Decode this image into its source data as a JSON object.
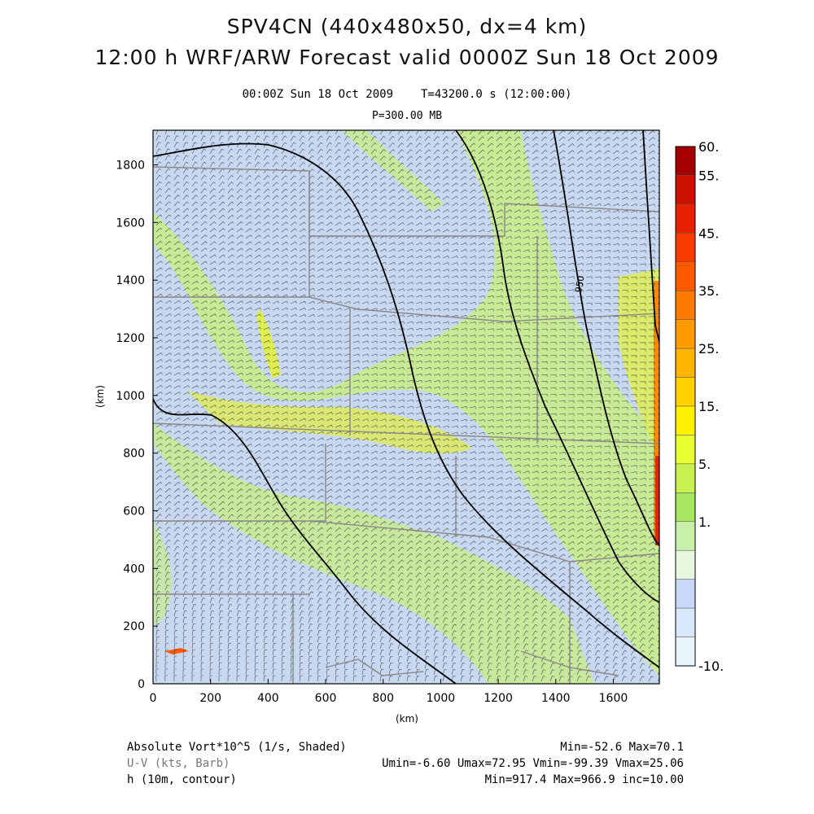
{
  "title": {
    "line1": "SPV4CN (440x480x50, dx=4 km)",
    "line2": "12:00 h WRF/ARW Forecast valid 0000Z Sun 18 Oct 2009"
  },
  "subtitle": {
    "time": "00:00Z Sun 18 Oct 2009",
    "elapsed": "T=43200.0 s (12:00:00)",
    "level": "P=300.00 MB"
  },
  "axes": {
    "x_label": "(km)",
    "y_label": "(km)",
    "x_ticks": [
      "0",
      "200",
      "400",
      "600",
      "800",
      "1000",
      "1200",
      "1400",
      "1600"
    ],
    "y_ticks": [
      "0",
      "200",
      "400",
      "600",
      "800",
      "1000",
      "1200",
      "1400",
      "1600",
      "1800"
    ],
    "x_range_km": [
      0,
      1760
    ],
    "y_range_km": [
      0,
      1920
    ]
  },
  "colorbar": {
    "labels": [
      "60.",
      "55.",
      "45.",
      "35.",
      "25.",
      "15.",
      "5.",
      "1.",
      "-10."
    ],
    "colors": [
      "#a40000",
      "#cc1000",
      "#e62000",
      "#fa3c00",
      "#ff5a00",
      "#ff7a00",
      "#ff9a00",
      "#ffb400",
      "#ffd200",
      "#fff000",
      "#e8ff30",
      "#c8f050",
      "#a8e860",
      "#c8f0a8",
      "#e8f8e0",
      "#c8d8f8",
      "#d8e8fa",
      "#e8f4fc"
    ]
  },
  "contour_label": "950",
  "footer": {
    "var1_name": "Absolute Vort*10^5 (1/s, Shaded)",
    "var1_stats": "Min=-52.6 Max=70.1",
    "var2_name": "U-V (kts, Barb)",
    "var2_stats": "Umin=-6.60 Umax=72.95 Vmin=-99.39 Vmax=25.06",
    "var3_name": "h (10m, contour)",
    "var3_stats": "Min=917.4 Max=966.9 inc=10.00"
  },
  "colors": {
    "background": "#c8d8f0",
    "light_green": "#c8f07a",
    "yellow_green": "#e0f040",
    "barb": "#222222",
    "contour": "#000000",
    "boundary": "#888888"
  }
}
